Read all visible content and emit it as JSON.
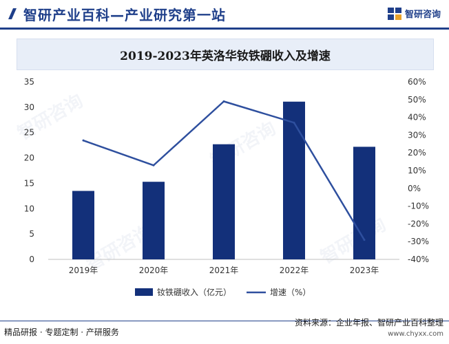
{
  "header": {
    "site_title": "智研产业百科—产业研究第一站",
    "brand_name": "智研咨询"
  },
  "chart_data": {
    "type": "bar",
    "title": "2019-2023年英洛华钕铁硼收入及增速",
    "categories": [
      "2019年",
      "2020年",
      "2021年",
      "2022年",
      "2023年"
    ],
    "series": [
      {
        "name": "钕铁硼收入（亿元）",
        "type": "bar",
        "axis": "left",
        "color": "#13307a",
        "values": [
          13.5,
          15.3,
          22.7,
          31.1,
          22.2
        ]
      },
      {
        "name": "增速（%）",
        "type": "line",
        "axis": "right",
        "color": "#2e4f9e",
        "values": [
          27,
          13,
          49,
          37,
          -29
        ]
      }
    ],
    "y_left": {
      "min": 0,
      "max": 35,
      "ticks": [
        0,
        5,
        10,
        15,
        20,
        25,
        30,
        35
      ]
    },
    "y_right": {
      "min": -40,
      "max": 60,
      "tick_labels": [
        "60%",
        "50%",
        "40%",
        "30%",
        "20%",
        "10%",
        "0%",
        "-10%",
        "-20%",
        "-30%",
        "-40%"
      ]
    },
    "legend_position": "bottom-center",
    "grid": false
  },
  "footer": {
    "left_text": "精品研报 · 专题定制 · 产研服务",
    "source_text": "资料来源：企业年报、智研产业百科整理",
    "url": "www.chyxx.com"
  },
  "watermark": {
    "text": "智研咨询"
  },
  "colors": {
    "brand_blue": "#1f3f8a",
    "bar": "#13307a",
    "line": "#2e4f9e"
  }
}
